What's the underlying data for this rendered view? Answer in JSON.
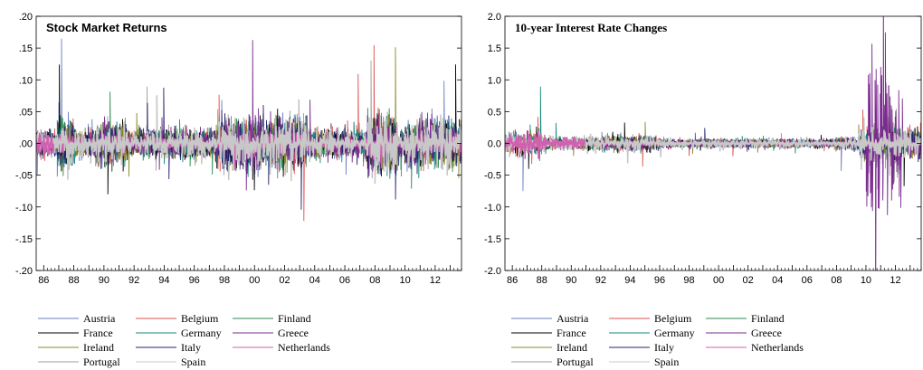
{
  "chart_data": [
    {
      "type": "line",
      "title": "Stock Market Returns",
      "ylim": [
        -0.2,
        0.2
      ],
      "y_ticks": [
        {
          "v": 0.2,
          "label": ".20"
        },
        {
          "v": 0.15,
          "label": ".15"
        },
        {
          "v": 0.1,
          "label": ".10"
        },
        {
          "v": 0.05,
          "label": ".05"
        },
        {
          "v": 0.0,
          "label": ".00"
        },
        {
          "v": -0.05,
          "label": "-.05"
        },
        {
          "v": -0.1,
          "label": "-.10"
        },
        {
          "v": -0.15,
          "label": "-.15"
        },
        {
          "v": -0.2,
          "label": "-.20"
        }
      ],
      "x_range": [
        1985.5,
        2013.75
      ],
      "x_ticks": [
        {
          "v": 1986,
          "label": "86"
        },
        {
          "v": 1988,
          "label": "88"
        },
        {
          "v": 1990,
          "label": "90"
        },
        {
          "v": 1992,
          "label": "92"
        },
        {
          "v": 1994,
          "label": "94"
        },
        {
          "v": 1996,
          "label": "96"
        },
        {
          "v": 1998,
          "label": "98"
        },
        {
          "v": 2000,
          "label": "00"
        },
        {
          "v": 2002,
          "label": "02"
        },
        {
          "v": 2004,
          "label": "04"
        },
        {
          "v": 2006,
          "label": "06"
        },
        {
          "v": 2008,
          "label": "08"
        },
        {
          "v": 2010,
          "label": "10"
        },
        {
          "v": 2012,
          "label": "12"
        }
      ],
      "series": [
        {
          "name": "Austria",
          "color": "#6a7fc0"
        },
        {
          "name": "Belgium",
          "color": "#e05050"
        },
        {
          "name": "Finland",
          "color": "#2e8b57"
        },
        {
          "name": "France",
          "color": "#000000"
        },
        {
          "name": "Germany",
          "color": "#138a7a"
        },
        {
          "name": "Greece",
          "color": "#7b2a8f"
        },
        {
          "name": "Ireland",
          "color": "#8a8a2a"
        },
        {
          "name": "Italy",
          "color": "#24246e"
        },
        {
          "name": "Netherlands",
          "color": "#d060b0"
        },
        {
          "name": "Portugal",
          "color": "#a0a0a0"
        },
        {
          "name": "Spain",
          "color": "#c8c8c8"
        }
      ]
    },
    {
      "type": "line",
      "title": "10-year Interest Rate Changes",
      "ylim": [
        -2.0,
        2.0
      ],
      "y_ticks": [
        {
          "v": 2.0,
          "label": "2.0"
        },
        {
          "v": 1.5,
          "label": "1.5"
        },
        {
          "v": 1.0,
          "label": "1.0"
        },
        {
          "v": 0.5,
          "label": "0.5"
        },
        {
          "v": 0.0,
          "label": "0.0"
        },
        {
          "v": -0.5,
          "label": "-0.5"
        },
        {
          "v": -1.0,
          "label": "-1.0"
        },
        {
          "v": -1.5,
          "label": "-1.5"
        },
        {
          "v": -2.0,
          "label": "-2.0"
        }
      ],
      "x_range": [
        1985.5,
        2013.75
      ],
      "x_ticks": [
        {
          "v": 1986,
          "label": "86"
        },
        {
          "v": 1988,
          "label": "88"
        },
        {
          "v": 1990,
          "label": "90"
        },
        {
          "v": 1992,
          "label": "92"
        },
        {
          "v": 1994,
          "label": "94"
        },
        {
          "v": 1996,
          "label": "96"
        },
        {
          "v": 1998,
          "label": "98"
        },
        {
          "v": 2000,
          "label": "00"
        },
        {
          "v": 2002,
          "label": "02"
        },
        {
          "v": 2004,
          "label": "04"
        },
        {
          "v": 2006,
          "label": "06"
        },
        {
          "v": 2008,
          "label": "08"
        },
        {
          "v": 2010,
          "label": "10"
        },
        {
          "v": 2012,
          "label": "12"
        }
      ],
      "series": [
        {
          "name": "Austria",
          "color": "#6a7fc0"
        },
        {
          "name": "Belgium",
          "color": "#e05050"
        },
        {
          "name": "Finland",
          "color": "#2e8b57"
        },
        {
          "name": "France",
          "color": "#000000"
        },
        {
          "name": "Germany",
          "color": "#138a7a"
        },
        {
          "name": "Greece",
          "color": "#7b2a8f"
        },
        {
          "name": "Ireland",
          "color": "#8a8a2a"
        },
        {
          "name": "Italy",
          "color": "#24246e"
        },
        {
          "name": "Netherlands",
          "color": "#d060b0"
        },
        {
          "name": "Portugal",
          "color": "#a0a0a0"
        },
        {
          "name": "Spain",
          "color": "#c8c8c8"
        }
      ]
    }
  ]
}
